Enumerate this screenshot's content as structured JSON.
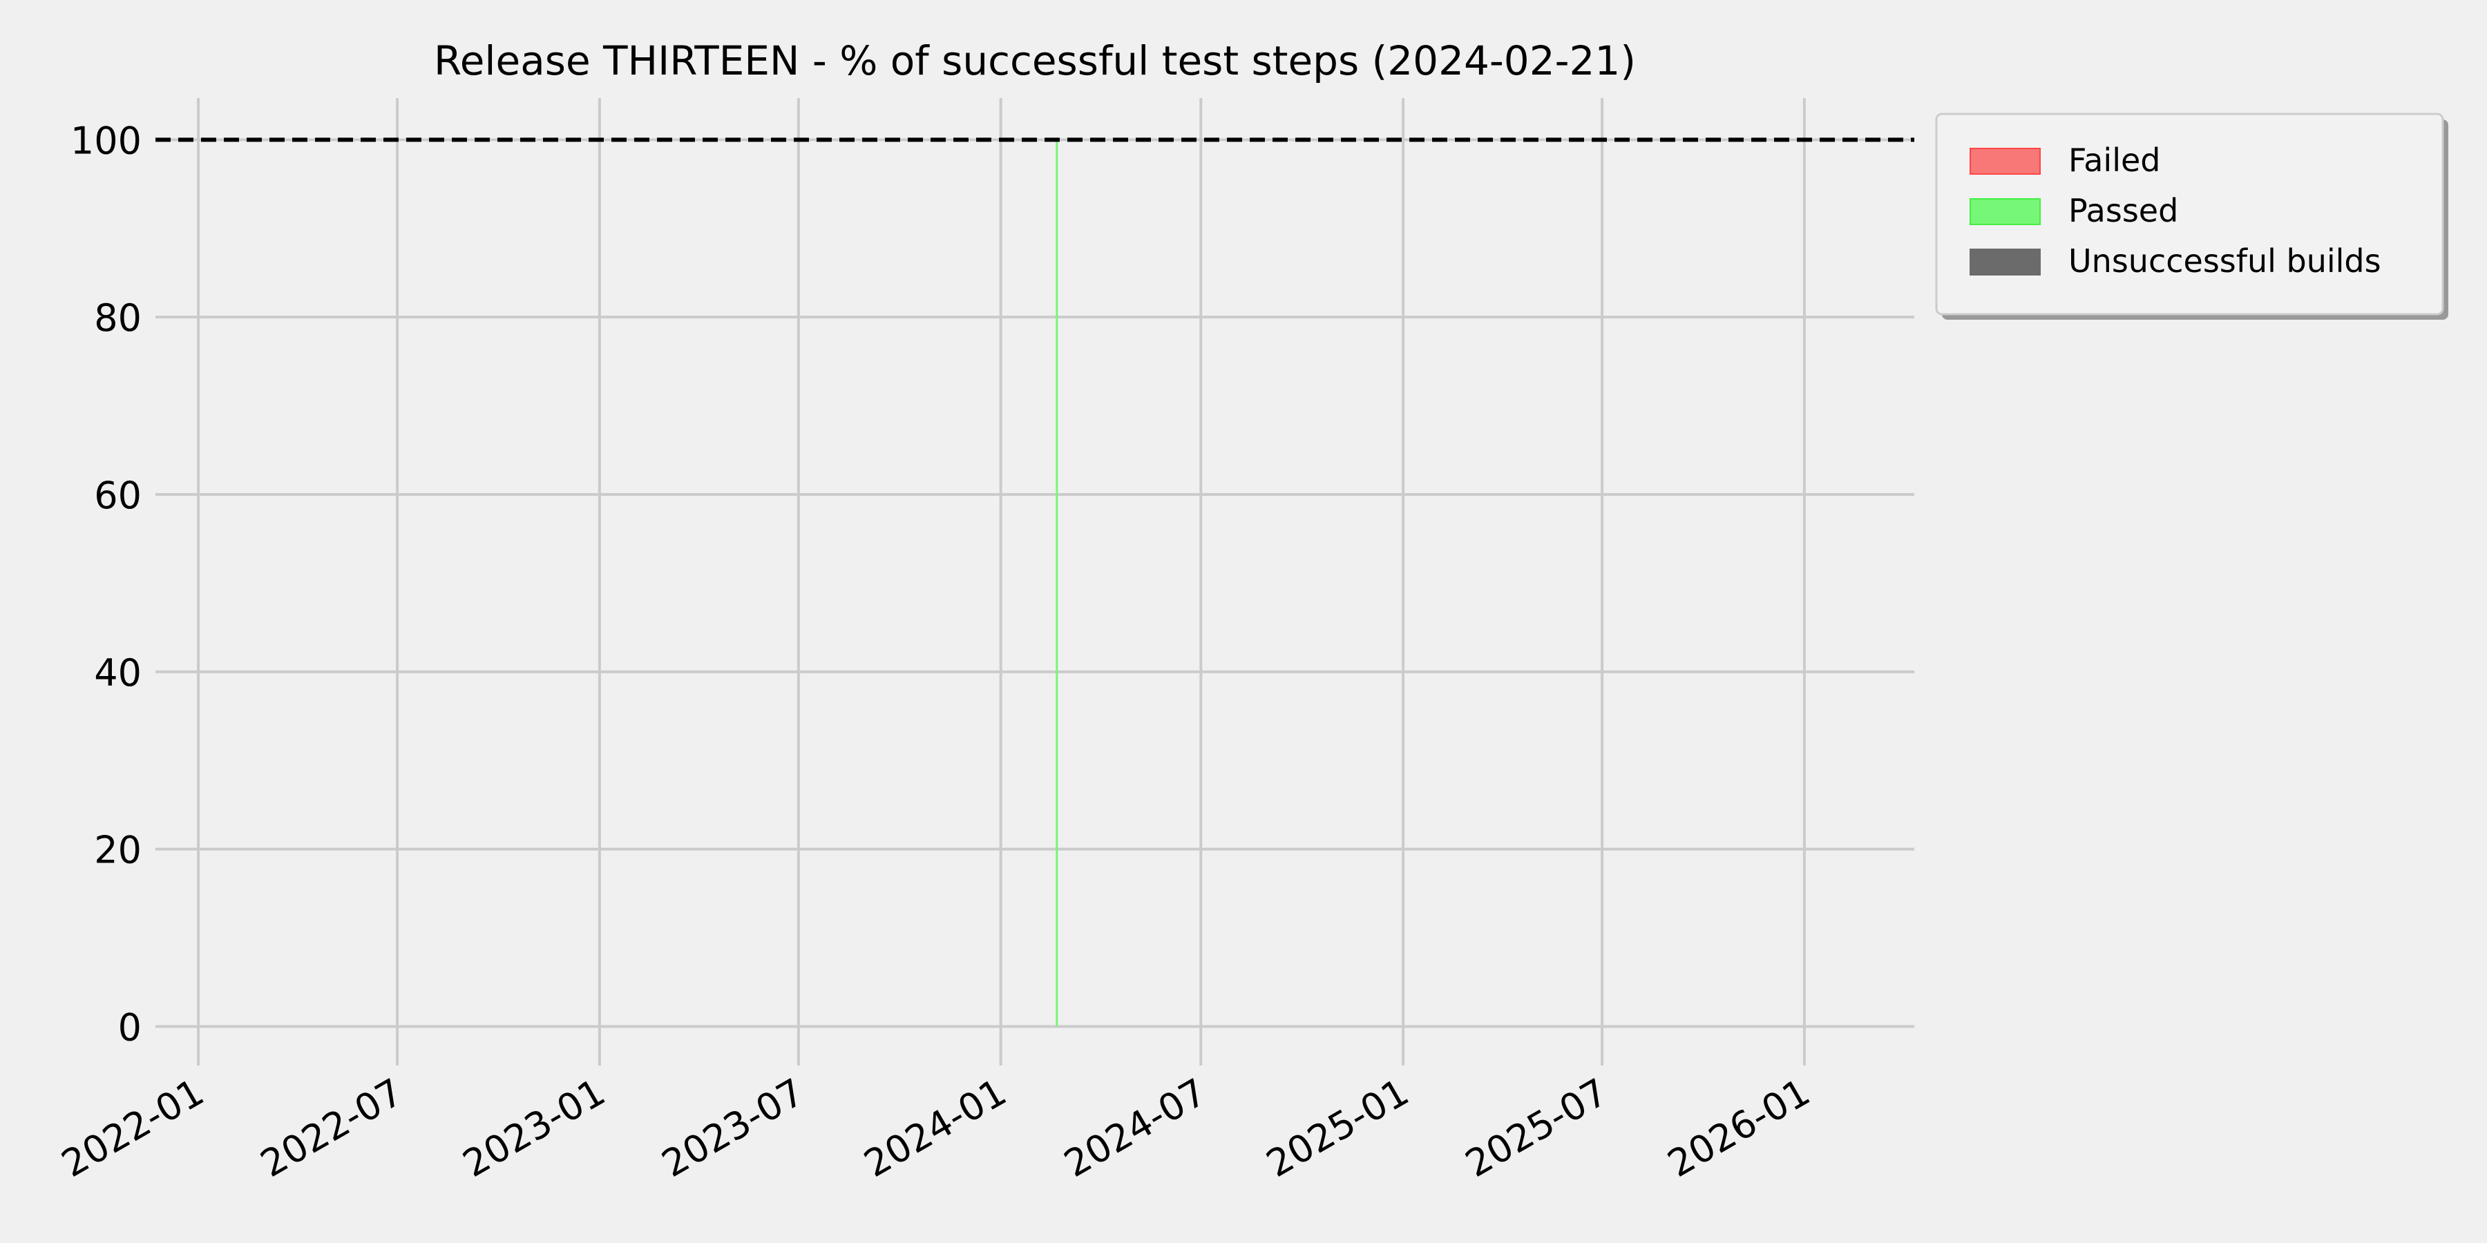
{
  "chart_data": {
    "type": "bar",
    "title": "Release THIRTEEN - % of successful test steps (2024-02-21)",
    "xlabel": "",
    "ylabel": "",
    "x_axis": "date",
    "xlim": [
      "2021-11-23",
      "2026-04-11"
    ],
    "ylim": [
      -4.4,
      104.7
    ],
    "x_ticks": [
      "2022-01",
      "2022-07",
      "2023-01",
      "2023-07",
      "2024-01",
      "2024-07",
      "2025-01",
      "2025-07",
      "2026-01"
    ],
    "y_ticks": [
      0,
      20,
      40,
      60,
      80,
      100
    ],
    "grid": true,
    "reference_line": {
      "y": 100,
      "style": "dashed",
      "color": "#000000"
    },
    "series": [
      {
        "name": "Failed",
        "color": "#f87878",
        "edge": "#ff4444",
        "x": [
          "2024-02-21"
        ],
        "values": [
          0
        ]
      },
      {
        "name": "Passed",
        "color": "#77f777",
        "edge": "#44ee44",
        "x": [
          "2024-02-21"
        ],
        "values": [
          100
        ]
      },
      {
        "name": "Unsuccessful builds",
        "color": "#6b6b6b",
        "edge": "#6b6b6b",
        "x": [],
        "values": []
      }
    ],
    "legend_placement": "outside-top-right"
  }
}
